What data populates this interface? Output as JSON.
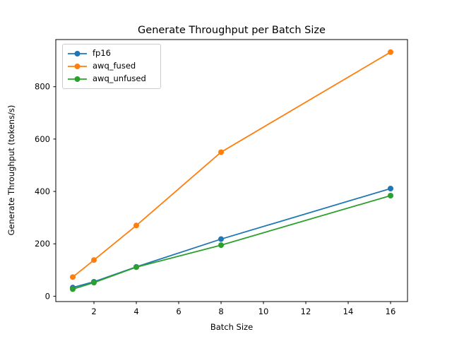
{
  "figure": {
    "background": "#ffffff",
    "axis_color": "#000000",
    "text_color": "#000000"
  },
  "chart_data": {
    "type": "line",
    "title": "Generate Throughput per Batch Size",
    "xlabel": "Batch Size",
    "ylabel": "Generate Throughput (tokens/s)",
    "x": [
      1,
      2,
      4,
      8,
      16
    ],
    "series": [
      {
        "name": "fp16",
        "color": "#1f77b4",
        "values": [
          33,
          55,
          112,
          218,
          411
        ]
      },
      {
        "name": "awq_fused",
        "color": "#ff7f0e",
        "values": [
          73,
          138,
          270,
          550,
          932
        ]
      },
      {
        "name": "awq_unfused",
        "color": "#2ca02c",
        "values": [
          27,
          52,
          111,
          195,
          384
        ]
      }
    ],
    "xlim": [
      0.2,
      16.8
    ],
    "ylim": [
      -20.5,
      980
    ],
    "xticks": [
      2,
      4,
      6,
      8,
      10,
      12,
      14,
      16
    ],
    "yticks": [
      0,
      200,
      400,
      600,
      800
    ],
    "grid": false,
    "marker": "o",
    "legend": {
      "position": "upper left",
      "labels": [
        "fp16",
        "awq_fused",
        "awq_unfused"
      ]
    }
  }
}
